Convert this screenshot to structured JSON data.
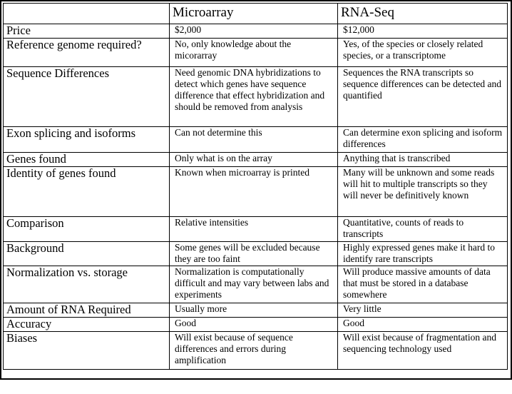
{
  "table": {
    "headers": [
      "",
      "Microarray",
      "RNA-Seq"
    ],
    "rows": [
      {
        "label": "Price",
        "microarray": "$2,000",
        "rnaseq": "$12,000"
      },
      {
        "label": "Reference genome required?",
        "microarray": "No, only knowledge about the micorarray",
        "rnaseq": "Yes, of the species or closely related species, or a transcriptome"
      },
      {
        "label": "Sequence Differences",
        "microarray": "Need genomic DNA hybridizations to detect which genes have sequence difference that effect hybridization and should be removed from analysis",
        "rnaseq": "Sequences the RNA transcripts so sequence differences can be detected and quantified"
      },
      {
        "label": "Exon splicing and isoforms",
        "microarray": "Can not determine this",
        "rnaseq": "Can determine exon splicing and isoform differences"
      },
      {
        "label": "Genes found",
        "microarray": "Only what is on the array",
        "rnaseq": "Anything that is transcribed"
      },
      {
        "label": "Identity of genes found",
        "microarray": "Known when microarray is printed",
        "rnaseq": "Many will be unknown and some reads will hit to multiple transcripts so they will never be definitively known"
      },
      {
        "label": "Comparison",
        "microarray": "Relative intensities",
        "rnaseq": "Quantitative, counts of reads to transcripts"
      },
      {
        "label": "Background",
        "microarray": "Some genes will be excluded because they are too faint",
        "rnaseq": "Highly expressed genes make it hard to identify rare transcripts"
      },
      {
        "label": "Normalization vs. storage",
        "microarray": "Normalization is computationally difficult and may vary between labs and experiments",
        "rnaseq": "Will produce massive amounts of data that must be stored in a database somewhere"
      },
      {
        "label": "Amount of RNA Required",
        "microarray": "Usually more",
        "rnaseq": "Very little"
      },
      {
        "label": "Accuracy",
        "microarray": "Good",
        "rnaseq": "Good"
      },
      {
        "label": "Biases",
        "microarray": "Will exist because of sequence differences and errors during amplification",
        "rnaseq": "Will exist because of fragmentation and sequencing technology used"
      }
    ]
  }
}
